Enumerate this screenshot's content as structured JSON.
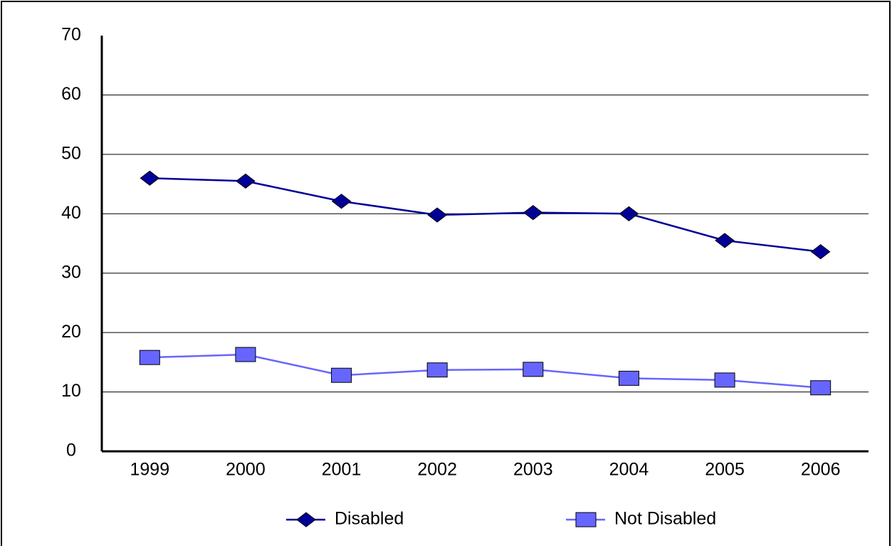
{
  "chart_data": {
    "type": "line",
    "categories": [
      "1999",
      "2000",
      "2001",
      "2002",
      "2003",
      "2004",
      "2005",
      "2006"
    ],
    "series": [
      {
        "name": "Disabled",
        "color": "#000099",
        "marker": "diamond",
        "values": [
          46.0,
          45.5,
          42.1,
          39.8,
          40.2,
          40.0,
          35.5,
          33.6
        ]
      },
      {
        "name": "Not Disabled",
        "color": "#6666ff",
        "marker": "square",
        "values": [
          15.8,
          16.3,
          12.8,
          13.7,
          13.8,
          12.3,
          12.0,
          10.7
        ]
      }
    ],
    "ylim": [
      0,
      70
    ],
    "yticks": [
      0,
      10,
      20,
      30,
      40,
      50,
      60,
      70
    ],
    "grid": true,
    "legend": "bottom"
  }
}
